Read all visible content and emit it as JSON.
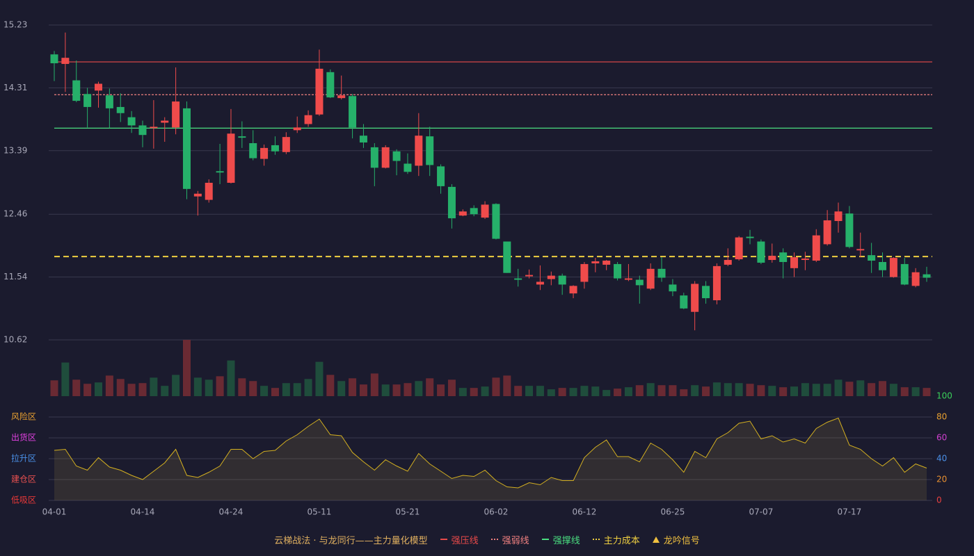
{
  "chart_data": [
    {
      "type": "candlestick",
      "categories": [
        "04-01",
        null,
        null,
        null,
        null,
        null,
        null,
        null,
        "04-14",
        null,
        null,
        null,
        null,
        null,
        null,
        null,
        "04-24",
        null,
        null,
        null,
        null,
        null,
        null,
        null,
        "05-11",
        null,
        null,
        null,
        null,
        null,
        null,
        null,
        "05-21",
        null,
        null,
        null,
        null,
        null,
        null,
        null,
        "06-02",
        null,
        null,
        null,
        null,
        null,
        null,
        null,
        "06-12",
        null,
        null,
        null,
        null,
        null,
        null,
        null,
        "06-25",
        null,
        null,
        null,
        null,
        null,
        null,
        null,
        "07-07",
        null,
        null,
        null,
        null,
        null,
        null,
        null,
        "07-17",
        null,
        null,
        null,
        null,
        null,
        null,
        null
      ],
      "open": [
        14.8,
        14.66,
        14.42,
        14.22,
        14.27,
        14.2,
        14.03,
        13.88,
        13.76,
        13.72,
        13.8,
        13.73,
        14.01,
        12.72,
        12.67,
        13.09,
        12.92,
        13.6,
        13.5,
        13.27,
        13.47,
        13.37,
        13.69,
        13.78,
        13.92,
        14.54,
        14.16,
        14.19,
        13.61,
        13.44,
        13.14,
        13.38,
        13.2,
        13.17,
        13.6,
        13.16,
        12.86,
        12.44,
        12.55,
        12.41,
        12.61,
        12.06,
        11.52,
        11.55,
        11.43,
        11.51,
        11.56,
        11.3,
        11.47,
        11.74,
        11.72,
        11.73,
        11.5,
        11.5,
        11.37,
        11.66,
        11.43,
        11.27,
        11.03,
        11.41,
        11.2,
        11.72,
        11.8,
        12.13,
        12.06,
        11.79,
        11.9,
        11.67,
        11.79,
        11.78,
        12.02,
        12.36,
        12.47,
        11.93,
        11.86,
        11.76,
        11.54,
        11.73,
        11.41,
        11.58
      ],
      "high": [
        14.85,
        15.12,
        14.71,
        14.31,
        14.4,
        14.3,
        14.23,
        13.97,
        13.83,
        14.13,
        13.88,
        14.61,
        14.11,
        12.8,
        12.97,
        13.49,
        14.0,
        13.82,
        13.69,
        13.48,
        13.6,
        13.66,
        13.89,
        13.98,
        14.87,
        14.58,
        14.49,
        14.22,
        13.78,
        13.5,
        13.47,
        13.41,
        13.35,
        13.94,
        13.74,
        13.19,
        12.9,
        12.53,
        12.59,
        12.65,
        12.62,
        12.06,
        11.66,
        11.65,
        11.71,
        11.62,
        11.59,
        11.42,
        11.76,
        11.82,
        11.79,
        11.76,
        11.73,
        11.56,
        11.74,
        11.83,
        11.51,
        11.31,
        11.48,
        11.48,
        11.74,
        11.96,
        12.14,
        12.23,
        12.09,
        12.03,
        11.96,
        11.9,
        11.91,
        12.24,
        12.52,
        12.63,
        12.58,
        12.19,
        12.04,
        11.9,
        11.83,
        11.82,
        11.67,
        11.69
      ],
      "low": [
        14.41,
        14.25,
        14.1,
        13.73,
        14.02,
        13.72,
        13.81,
        13.65,
        13.44,
        13.42,
        13.52,
        13.63,
        12.68,
        12.44,
        12.63,
        12.9,
        12.91,
        13.43,
        13.25,
        13.17,
        13.33,
        13.34,
        13.65,
        13.74,
        13.9,
        14.16,
        14.14,
        13.57,
        13.43,
        12.87,
        13.13,
        13.03,
        13.05,
        13.02,
        13.02,
        12.76,
        12.25,
        12.43,
        12.43,
        12.39,
        12.09,
        11.6,
        11.4,
        11.52,
        11.35,
        11.42,
        11.28,
        11.23,
        11.37,
        11.61,
        11.64,
        11.49,
        11.48,
        11.15,
        11.35,
        11.47,
        11.26,
        11.07,
        10.76,
        11.15,
        11.14,
        11.7,
        11.78,
        12.02,
        11.73,
        11.75,
        11.52,
        11.54,
        11.64,
        11.76,
        12.0,
        12.19,
        11.96,
        11.83,
        11.6,
        11.54,
        11.53,
        11.42,
        11.39,
        11.47
      ],
      "close": [
        14.67,
        14.75,
        14.12,
        14.03,
        14.37,
        14.01,
        13.94,
        13.76,
        13.62,
        13.74,
        13.83,
        14.11,
        12.83,
        12.76,
        12.92,
        13.07,
        13.64,
        13.58,
        13.28,
        13.43,
        13.38,
        13.59,
        13.73,
        13.91,
        14.59,
        14.17,
        14.2,
        13.73,
        13.51,
        13.14,
        13.44,
        13.24,
        13.08,
        13.61,
        13.18,
        12.87,
        12.4,
        12.5,
        12.46,
        12.6,
        12.1,
        11.6,
        11.5,
        11.57,
        11.47,
        11.56,
        11.43,
        11.41,
        11.73,
        11.77,
        11.78,
        11.52,
        11.52,
        11.42,
        11.66,
        11.53,
        11.33,
        11.08,
        11.44,
        11.23,
        11.7,
        11.79,
        12.12,
        12.11,
        11.75,
        11.85,
        11.76,
        11.83,
        11.81,
        12.15,
        12.37,
        12.5,
        11.98,
        11.95,
        11.78,
        11.64,
        11.82,
        11.43,
        11.61,
        11.53
      ],
      "up_color": "#ef4b4b",
      "down_color": "#26b06a",
      "ylim": [
        10.62,
        15.23
      ],
      "yticks": [
        15.23,
        14.31,
        13.39,
        12.46,
        11.54,
        10.62
      ],
      "grid": true,
      "levels": [
        {
          "name": "强压线",
          "value": 14.69,
          "color": "#e84a4a",
          "style": "solid"
        },
        {
          "name": "强弱线",
          "value": 14.21,
          "color": "#f08080",
          "style": "dashed"
        },
        {
          "name": "强撑线",
          "value": 13.72,
          "color": "#4ade80",
          "style": "solid"
        },
        {
          "name": "主力成本",
          "value": 11.84,
          "color": "#f0d040",
          "style": "dashed"
        }
      ],
      "legend_title": "云梯战法 · 与龙同行——主力量化模型",
      "signal": {
        "name": "龙吟信号",
        "color": "#f0c040"
      }
    },
    {
      "type": "bar",
      "values": [
        23,
        49,
        24,
        18,
        20,
        30,
        25,
        18,
        19,
        27,
        15,
        31,
        82,
        27,
        24,
        29,
        52,
        26,
        22,
        15,
        12,
        19,
        19,
        25,
        50,
        31,
        22,
        26,
        17,
        33,
        17,
        17,
        19,
        22,
        26,
        17,
        24,
        12,
        12,
        14,
        27,
        30,
        15,
        15,
        15,
        10,
        12,
        12,
        15,
        14,
        9,
        11,
        13,
        16,
        19,
        16,
        16,
        10,
        16,
        14,
        20,
        19,
        19,
        18,
        16,
        15,
        13,
        14,
        19,
        18,
        18,
        24,
        21,
        23,
        19,
        22,
        18,
        13,
        13,
        12
      ],
      "color_when_candle_rises": "#1f4d3c",
      "color_when_candle_falls": "#6a2a33"
    },
    {
      "type": "line",
      "values": [
        48,
        49,
        33,
        29,
        41,
        32,
        29,
        24,
        20,
        28,
        36,
        49,
        24,
        22,
        27,
        33,
        49,
        49,
        40,
        47,
        48,
        57,
        63,
        71,
        78,
        63,
        62,
        46,
        37,
        29,
        39,
        33,
        28,
        45,
        35,
        28,
        21,
        24,
        23,
        29,
        19,
        13,
        12,
        17,
        15,
        22,
        19,
        19,
        41,
        51,
        58,
        42,
        42,
        37,
        55,
        49,
        39,
        27,
        47,
        41,
        59,
        65,
        74,
        76,
        59,
        62,
        56,
        59,
        55,
        69,
        75,
        79,
        53,
        49,
        40,
        33,
        41,
        27,
        35,
        31
      ],
      "color": "#d4b020",
      "ylim": [
        0,
        100
      ],
      "yticks": [
        0,
        20,
        40,
        60,
        80,
        100
      ],
      "ytick_colors": [
        "#e84040",
        "#e89030",
        "#4a90e8",
        "#d040d0",
        "#e8a030",
        "#3ad05a"
      ],
      "zones": [
        {
          "label": "低吸区",
          "value": 0,
          "color": "#e83838"
        },
        {
          "label": "建仓区",
          "value": 20,
          "color": "#e85050"
        },
        {
          "label": "拉升区",
          "value": 40,
          "color": "#4a90e8"
        },
        {
          "label": "出货区",
          "value": 60,
          "color": "#e040e0"
        },
        {
          "label": "风险区",
          "value": 80,
          "color": "#e8a030"
        }
      ]
    }
  ]
}
